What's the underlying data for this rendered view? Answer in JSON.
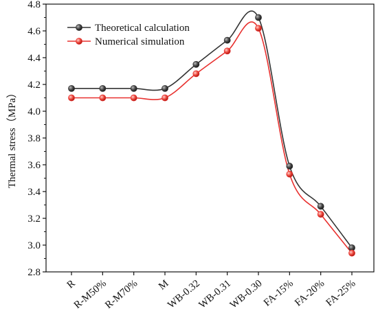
{
  "chart_data": {
    "type": "line",
    "title": "",
    "xlabel": "",
    "ylabel": "Thermal stress（MPa）",
    "categories": [
      "R",
      "R-M50%",
      "R-M70%",
      "M",
      "WB-0.32",
      "WB-0.31",
      "WB-0.30",
      "FA-15%",
      "FA-20%",
      "FA-25%"
    ],
    "ylim": [
      2.8,
      4.8
    ],
    "yticks": [
      "2.8",
      "3.0",
      "3.2",
      "3.4",
      "3.6",
      "3.8",
      "4.0",
      "4.2",
      "4.4",
      "4.6",
      "4.8"
    ],
    "grid": false,
    "legend_position": "top-left",
    "smooth": true,
    "series": [
      {
        "name": "Theoretical calculation",
        "color": "#333333",
        "marker": "sphere",
        "values": [
          4.17,
          4.17,
          4.17,
          4.17,
          4.35,
          4.53,
          4.7,
          3.59,
          3.29,
          2.98
        ]
      },
      {
        "name": "Numerical simulation",
        "color": "#e8302e",
        "marker": "sphere",
        "values": [
          4.1,
          4.1,
          4.1,
          4.1,
          4.28,
          4.45,
          4.62,
          3.53,
          3.23,
          2.94
        ]
      }
    ]
  }
}
